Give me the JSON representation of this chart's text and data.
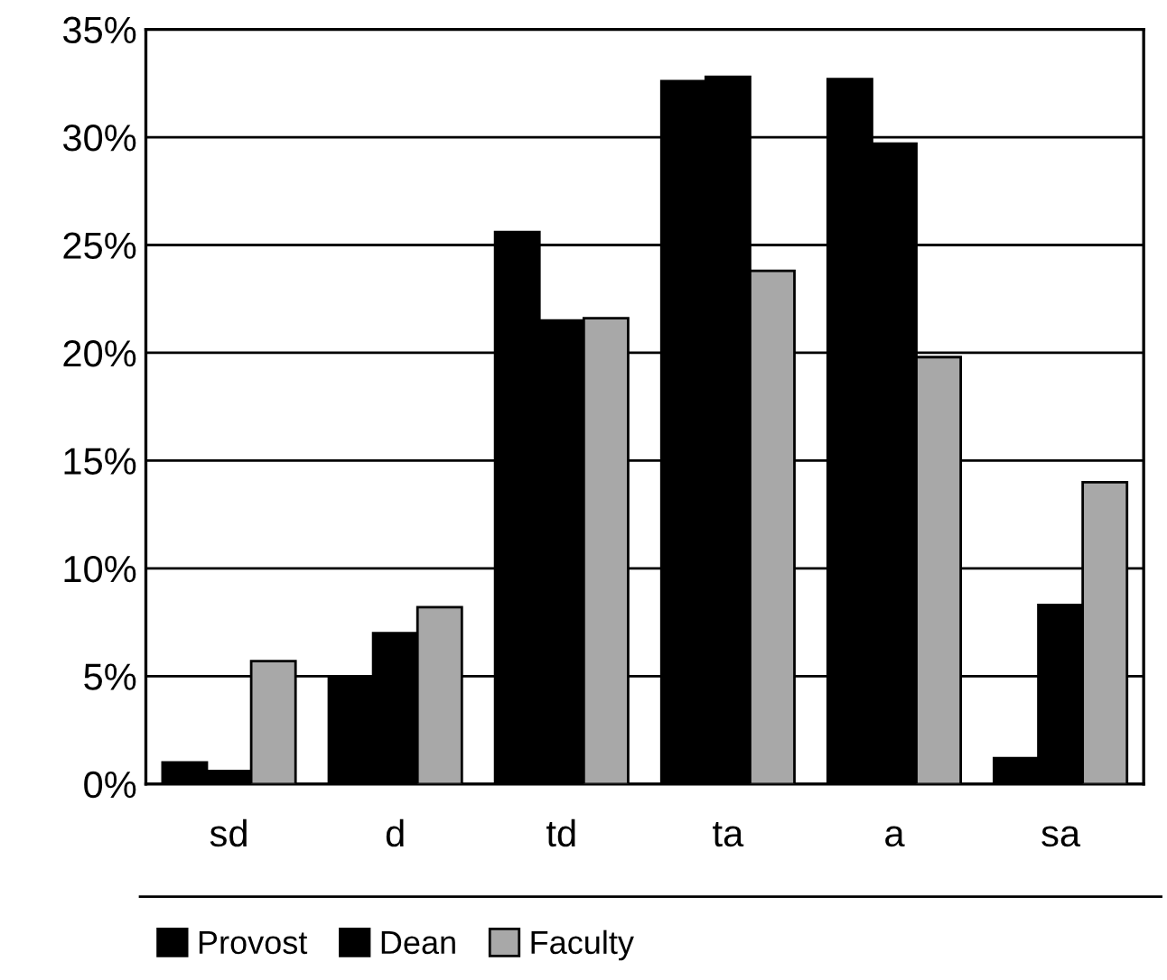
{
  "chart_data": {
    "type": "bar",
    "categories": [
      "sd",
      "d",
      "td",
      "ta",
      "a",
      "sa"
    ],
    "series": [
      {
        "name": "Provost",
        "color": "#000000",
        "values": [
          1.0,
          5.0,
          25.6,
          32.6,
          32.7,
          1.2
        ]
      },
      {
        "name": "Dean",
        "color": "#000000",
        "values": [
          0.6,
          7.0,
          21.5,
          32.8,
          29.7,
          8.3
        ]
      },
      {
        "name": "Faculty",
        "color": "#a8a8a8",
        "values": [
          5.7,
          8.2,
          21.6,
          23.8,
          19.8,
          14.0
        ]
      }
    ],
    "ylim": [
      0,
      35
    ],
    "yticks": [
      {
        "value": 0,
        "label": "0%"
      },
      {
        "value": 5,
        "label": "5%"
      },
      {
        "value": 10,
        "label": "10%"
      },
      {
        "value": 15,
        "label": "15%"
      },
      {
        "value": 20,
        "label": "20%"
      },
      {
        "value": 25,
        "label": "25%"
      },
      {
        "value": 30,
        "label": "30%"
      },
      {
        "value": 35,
        "label": "35%"
      }
    ],
    "grid": "y",
    "legend": "bottom"
  }
}
